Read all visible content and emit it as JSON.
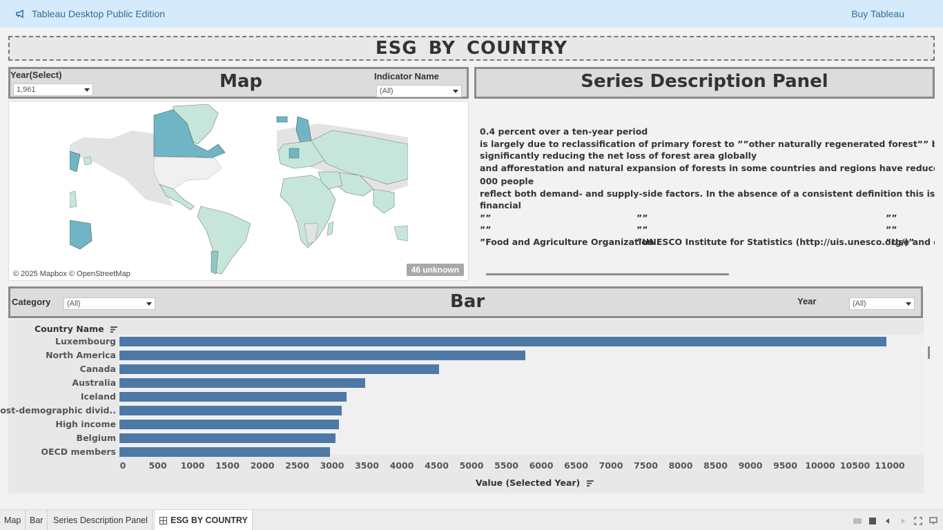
{
  "topbar": {
    "app_title": "Tableau Desktop Public Edition",
    "buy_label": "Buy Tableau",
    "icon": "megaphone-icon"
  },
  "dashboard": {
    "title": "ESG  BY  COUNTRY"
  },
  "map_panel": {
    "title": "Map",
    "year_filter_label": "Year(Select)",
    "year_filter_value": "1,961",
    "indicator_filter_label": "Indicator Name",
    "indicator_filter_value": "(All)",
    "attribution": "© 2025 Mapbox © OpenStreetMap",
    "unknown_badge": "46 unknown"
  },
  "series_panel": {
    "title": "Series Description Panel",
    "lines": [
      "0.4 percent over a ten-year period",
      "is largely due to reclassification of primary forest to ””other naturally regenerated forest”” because of sele",
      "significantly reducing the net loss of forest area globally",
      "and afforestation and natural expansion of forests in some countries and regions have reduced the net loss o",
      "000 people",
      "reflect both demand- and supply-side factors. In the absence of a consistent definition this is a crude indicato",
      "financial"
    ],
    "quote_rows": [
      [
        "””",
        "””",
        "””"
      ],
      [
        "””",
        "””",
        "””"
      ]
    ],
    "source_row": [
      "”Food and Agriculture Organization",
      "”UNESCO Institute for Statistics (http://uis.unesco.org/)”",
      "”Use and di"
    ]
  },
  "bar_panel": {
    "title": "Bar",
    "category_filter_label": "Category",
    "category_filter_value": "(All)",
    "year_filter_label": "Year",
    "year_filter_value": "(All)"
  },
  "chart_data": {
    "type": "bar",
    "orientation": "horizontal",
    "title": "",
    "ylabel": "Country Name",
    "xlabel": "Value (Selected Year)",
    "categories": [
      "Luxembourg",
      "North America",
      "Canada",
      "Australia",
      "Iceland",
      "Post-demographic divid..",
      "High income",
      "Belgium",
      "OECD members"
    ],
    "values": [
      11000,
      5820,
      4580,
      3520,
      3260,
      3190,
      3150,
      3100,
      3020
    ],
    "xlim": [
      0,
      11600
    ],
    "xticks": [
      0,
      500,
      1000,
      1500,
      2000,
      2500,
      3000,
      3500,
      4000,
      4500,
      5000,
      5500,
      6000,
      6500,
      7000,
      7500,
      8000,
      8500,
      9000,
      9500,
      10000,
      10500,
      11000
    ],
    "bar_color": "#4e79a7",
    "grid": false
  },
  "tabs": [
    {
      "label": "Map",
      "active": false
    },
    {
      "label": "Bar",
      "active": false
    },
    {
      "label": "Series Description Panel",
      "active": false
    },
    {
      "label": "ESG  BY  COUNTRY",
      "active": true
    }
  ],
  "colors": {
    "topbar_bg": "#d5ebfb",
    "link": "#2e6f9e",
    "bar": "#4e79a7",
    "map_highlight": "#6fb5c6",
    "map_light": "#c6e6dc"
  }
}
